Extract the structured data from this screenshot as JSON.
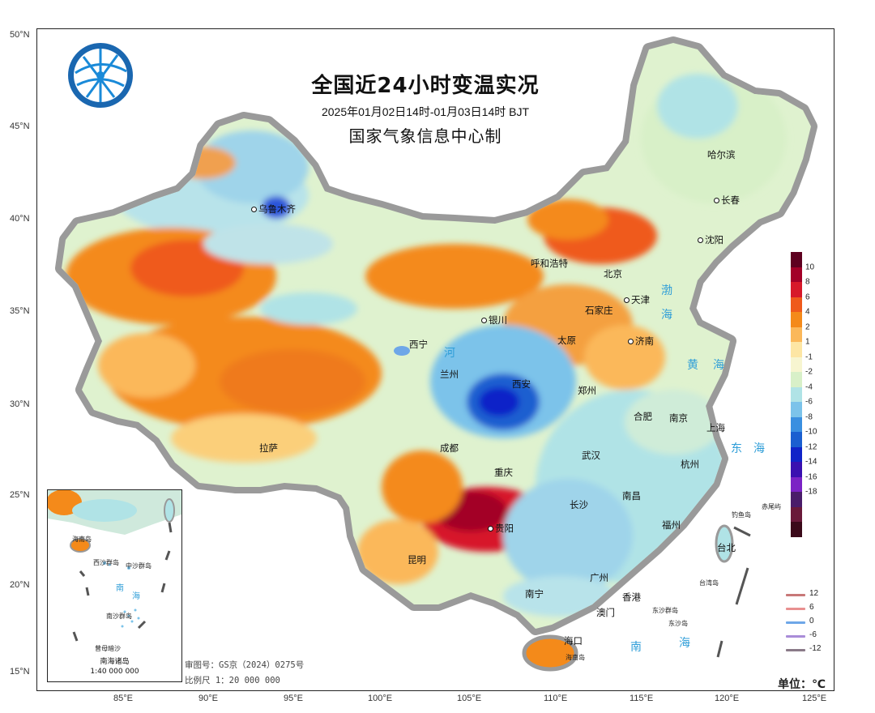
{
  "title": "全国近24小时变温实况",
  "subtitle": "2025年01月02日14时-01月03日14时  BJT",
  "producer": "国家气象信息中心制",
  "lat_labels": [
    "50°N",
    "45°N",
    "40°N",
    "35°N",
    "30°N",
    "25°N",
    "20°N",
    "15°N"
  ],
  "lon_labels": [
    "85°E",
    "90°E",
    "95°E",
    "100°E",
    "105°E",
    "110°E",
    "115°E",
    "120°E",
    "125°E"
  ],
  "cities": [
    "乌鲁木齐",
    "哈尔滨",
    "长春",
    "沈阳",
    "呼和浩特",
    "北京",
    "天津",
    "石家庄",
    "银川",
    "太原",
    "济南",
    "西宁",
    "兰州",
    "西安",
    "郑州",
    "合肥",
    "南京",
    "上海",
    "拉萨",
    "成都",
    "武汉",
    "杭州",
    "重庆",
    "长沙",
    "南昌",
    "福州",
    "贵阳",
    "昆明",
    "台北",
    "南宁",
    "广州",
    "香港",
    "澳门",
    "海口"
  ],
  "seas": [
    "渤",
    "海",
    "黄",
    "海",
    "东",
    "海",
    "南",
    "海",
    "河"
  ],
  "small_places": [
    "钓鱼岛",
    "赤尾屿",
    "台湾岛",
    "东沙群岛",
    "东沙岛",
    "海南岛"
  ],
  "inset": {
    "caption": "南海诸岛",
    "scale": "1:40 000 000",
    "labels": [
      "海南岛",
      "西沙群岛",
      "中沙群岛",
      "南",
      "海",
      "南沙群岛",
      "曾母暗沙"
    ]
  },
  "review_number": "审图号：GS京（2024）0275号",
  "scale": "比例尺 1：20 000 000",
  "unit": "单位：℃",
  "legend": {
    "ticks": [
      "10",
      "8",
      "6",
      "4",
      "2",
      "1",
      "-1",
      "-2",
      "-4",
      "-6",
      "-8",
      "-10",
      "-12",
      "-14",
      "-16",
      "-18"
    ],
    "colors": [
      "#5e0020",
      "#a30028",
      "#d7192a",
      "#ef5a1c",
      "#f48a1a",
      "#fbb85a",
      "#fde6a4",
      "#f7f5d0",
      "#d8f0c8",
      "#b0e3e6",
      "#7cc3ea",
      "#3a8fe0",
      "#1b5fd0",
      "#1024c8",
      "#3a10b0",
      "#7b23c5",
      "#4a1d6a",
      "#6a1a3a",
      "#3b0a1a"
    ],
    "isolines": [
      {
        "label": "12",
        "color": "#c87878"
      },
      {
        "label": "6",
        "color": "#e89090"
      },
      {
        "label": "0",
        "color": "#6ea7e8"
      },
      {
        "label": "-6",
        "color": "#a98cd8"
      },
      {
        "label": "-12",
        "color": "#8a7a88"
      }
    ]
  }
}
